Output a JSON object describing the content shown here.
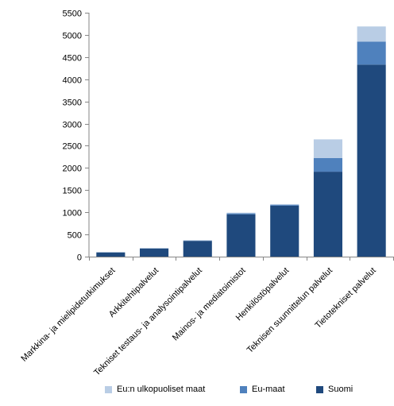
{
  "chart_data": {
    "type": "bar",
    "stacked": true,
    "categories": [
      "Markkina- ja mielipidetutkimukset",
      "Arkkitehtipalvelut",
      "Tekniset testaus- ja analysointipalvelut",
      "Mainos- ja mediatoimistot",
      "Henkilöstöpalvelut",
      "Teknisen suunnittelun palvelut",
      "Tietotekniset palvelut"
    ],
    "series": [
      {
        "name": "Suomi",
        "color": "#1f497d",
        "values": [
          95,
          185,
          355,
          955,
          1150,
          1915,
          4330
        ]
      },
      {
        "name": "Eu-maat",
        "color": "#4f81bd",
        "values": [
          3,
          3,
          8,
          20,
          20,
          310,
          520
        ]
      },
      {
        "name": "Eu:n ulkopuoliset maat",
        "color": "#b9cde5",
        "values": [
          2,
          2,
          7,
          15,
          15,
          420,
          340
        ]
      }
    ],
    "yticks": [
      "0",
      "500",
      "1000",
      "1500",
      "2000",
      "2500",
      "3000",
      "3500",
      "4000",
      "4500",
      "5000",
      "5500"
    ],
    "ylim": [
      0,
      5500
    ],
    "grid": false,
    "legend_position": "bottom",
    "legend_order": [
      "Eu:n ulkopuoliset maat",
      "Eu-maat",
      "Suomi"
    ],
    "title": "",
    "xlabel": "",
    "ylabel": ""
  }
}
